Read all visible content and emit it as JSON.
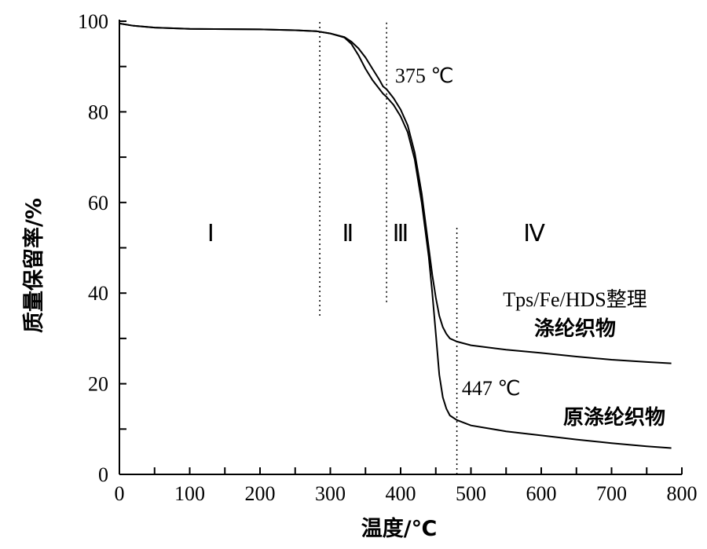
{
  "chart_data": {
    "type": "line",
    "title": "",
    "xlabel": "温度/℃",
    "ylabel": "质量保留率/%",
    "xlim": [
      0,
      800
    ],
    "ylim": [
      0,
      100
    ],
    "x_ticks": [
      0,
      100,
      200,
      300,
      400,
      500,
      600,
      700,
      800
    ],
    "y_ticks": [
      0,
      20,
      40,
      60,
      80,
      100
    ],
    "grid": false,
    "series": [
      {
        "name": "Tps/Fe/HDS整理涤纶织物",
        "points": [
          [
            0,
            99.5
          ],
          [
            20,
            99.0
          ],
          [
            50,
            98.6
          ],
          [
            100,
            98.3
          ],
          [
            200,
            98.2
          ],
          [
            250,
            98.0
          ],
          [
            280,
            97.8
          ],
          [
            300,
            97.3
          ],
          [
            320,
            96.5
          ],
          [
            330,
            95.5
          ],
          [
            340,
            94.0
          ],
          [
            350,
            92.0
          ],
          [
            360,
            89.5
          ],
          [
            370,
            87.0
          ],
          [
            375,
            85.6
          ],
          [
            380,
            85.0
          ],
          [
            390,
            83.0
          ],
          [
            400,
            80.5
          ],
          [
            410,
            77.0
          ],
          [
            420,
            71.0
          ],
          [
            430,
            62.0
          ],
          [
            440,
            50.0
          ],
          [
            445,
            44.0
          ],
          [
            450,
            39.0
          ],
          [
            455,
            35.0
          ],
          [
            460,
            32.5
          ],
          [
            465,
            31.0
          ],
          [
            470,
            30.0
          ],
          [
            480,
            29.3
          ],
          [
            500,
            28.5
          ],
          [
            550,
            27.5
          ],
          [
            600,
            26.8
          ],
          [
            650,
            26.0
          ],
          [
            700,
            25.3
          ],
          [
            750,
            24.8
          ],
          [
            785,
            24.5
          ]
        ]
      },
      {
        "name": "原涤纶织物",
        "points": [
          [
            0,
            99.5
          ],
          [
            20,
            99.0
          ],
          [
            50,
            98.6
          ],
          [
            100,
            98.3
          ],
          [
            200,
            98.2
          ],
          [
            250,
            98.0
          ],
          [
            280,
            97.8
          ],
          [
            300,
            97.3
          ],
          [
            320,
            96.4
          ],
          [
            330,
            95.0
          ],
          [
            340,
            92.5
          ],
          [
            350,
            89.5
          ],
          [
            360,
            87.0
          ],
          [
            370,
            85.0
          ],
          [
            375,
            84.0
          ],
          [
            380,
            83.3
          ],
          [
            390,
            81.5
          ],
          [
            400,
            79.0
          ],
          [
            410,
            75.5
          ],
          [
            420,
            69.5
          ],
          [
            430,
            60.0
          ],
          [
            440,
            48.0
          ],
          [
            445,
            40.0
          ],
          [
            450,
            31.0
          ],
          [
            455,
            22.0
          ],
          [
            460,
            17.0
          ],
          [
            465,
            14.5
          ],
          [
            470,
            13.0
          ],
          [
            480,
            12.0
          ],
          [
            500,
            10.8
          ],
          [
            550,
            9.5
          ],
          [
            600,
            8.6
          ],
          [
            650,
            7.7
          ],
          [
            700,
            6.9
          ],
          [
            750,
            6.2
          ],
          [
            785,
            5.8
          ]
        ]
      }
    ],
    "vlines": [
      285,
      380,
      480
    ],
    "regions": [
      {
        "label": "Ⅰ",
        "x": 130,
        "y": 51.5
      },
      {
        "label": "Ⅱ",
        "x": 325,
        "y": 51.5
      },
      {
        "label": "Ⅲ",
        "x": 400,
        "y": 51.5
      },
      {
        "label": "Ⅳ",
        "x": 590,
        "y": 51.5
      }
    ],
    "annotations": [
      {
        "text": "375 ℃",
        "x": 392,
        "y": 86.5
      },
      {
        "text": "447 ℃",
        "x": 487,
        "y": 17.5
      }
    ],
    "legend_labels": {
      "modified_line1": "Tps/Fe/HDS整理",
      "modified_line2": "涤纶织物",
      "original": "原涤纶织物"
    }
  }
}
